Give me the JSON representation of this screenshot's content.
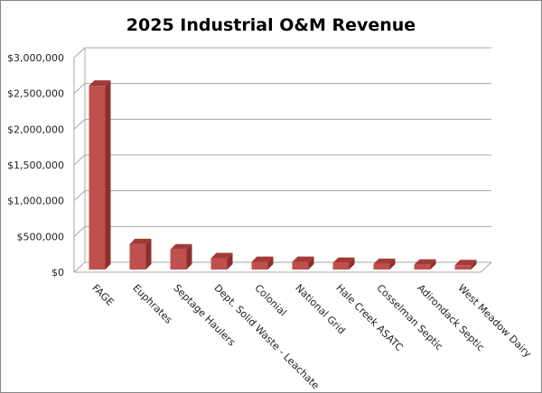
{
  "chart_data": {
    "type": "bar",
    "title": "2025 Industrial O&M Revenue",
    "xlabel": "",
    "ylabel": "",
    "ylim": [
      0,
      3000000
    ],
    "yticks": [
      "$0",
      "$500,000",
      "$1,000,000",
      "$1,500,000",
      "$2,000,000",
      "$2,500,000",
      "$3,000,000"
    ],
    "grid": true,
    "legend": "none",
    "style": "3d-column",
    "bar_color": "#C0504D",
    "categories": [
      "FAGE",
      "Euphrates",
      "Septage Haulers",
      "Dept. Solid Waste - Leachate",
      "Colonial",
      "National Grid",
      "Hale Creek ASATC",
      "Cosselman Septic",
      "Adirondack Septic",
      "West Meadow Dairy"
    ],
    "values": [
      2570000,
      355000,
      280000,
      157000,
      106000,
      106000,
      93000,
      77000,
      68000,
      60000
    ]
  }
}
